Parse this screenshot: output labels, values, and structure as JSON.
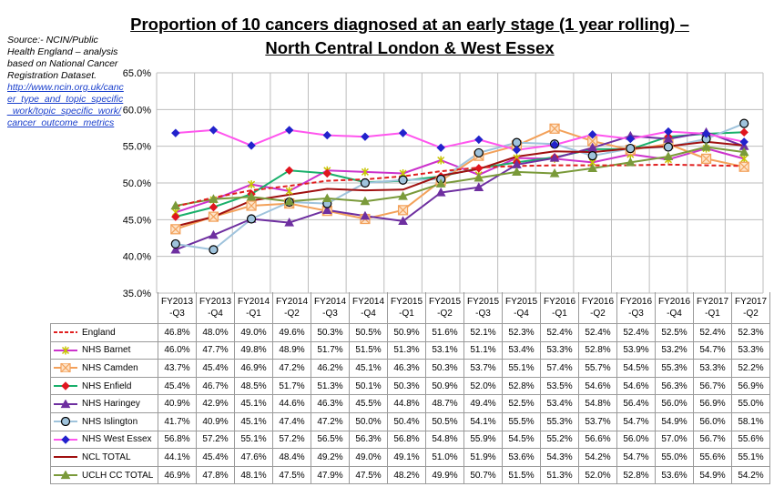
{
  "title_line1": "Proportion of 10 cancers diagnosed at an early stage (1 year rolling) –",
  "title_line2": "North Central London & West Essex",
  "source": {
    "text": "Source:- NCIN/Public Health England – analysis based on National Cancer Registration Dataset.",
    "link": "http://www.ncin.org.uk/cancer_type_and_topic_specific_work/topic_specific_work/cancer_outcome_metrics"
  },
  "chart_data": {
    "type": "line",
    "title": "Proportion of 10 cancers diagnosed at an early stage (1 year rolling) – North Central London & West Essex",
    "categories": [
      "FY2013 -Q3",
      "FY2013 -Q4",
      "FY2014 -Q1",
      "FY2014 -Q2",
      "FY2014 -Q3",
      "FY2014 -Q4",
      "FY2015 -Q1",
      "FY2015 -Q2",
      "FY2015 -Q3",
      "FY2015 -Q4",
      "FY2016 -Q1",
      "FY2016 -Q2",
      "FY2016 -Q3",
      "FY2016 -Q4",
      "FY2017 -Q1",
      "FY2017 -Q2"
    ],
    "ylim": [
      35.0,
      65.0
    ],
    "yticks": [
      "35.0%",
      "40.0%",
      "45.0%",
      "50.0%",
      "55.0%",
      "60.0%",
      "65.0%"
    ],
    "grid": true,
    "legend": "data table below chart",
    "series": [
      {
        "name": "England",
        "color": "#e01f1f",
        "marker": "none",
        "dash": true,
        "values": [
          46.8,
          48.0,
          49.0,
          49.6,
          50.3,
          50.5,
          50.9,
          51.6,
          52.1,
          52.3,
          52.4,
          52.4,
          52.4,
          52.5,
          52.4,
          52.3
        ],
        "labels": [
          "46.8%",
          "48.0%",
          "49.0%",
          "49.6%",
          "50.3%",
          "50.5%",
          "50.9%",
          "51.6%",
          "52.1%",
          "52.3%",
          "52.4%",
          "52.4%",
          "52.4%",
          "52.5%",
          "52.4%",
          "52.3%"
        ]
      },
      {
        "name": "NHS Barnet",
        "color": "#cc33cc",
        "marker": "star",
        "values": [
          46.0,
          47.7,
          49.8,
          48.9,
          51.7,
          51.5,
          51.3,
          53.1,
          51.1,
          53.4,
          53.3,
          52.8,
          53.9,
          53.2,
          54.7,
          53.3
        ],
        "labels": [
          "46.0%",
          "47.7%",
          "49.8%",
          "48.9%",
          "51.7%",
          "51.5%",
          "51.3%",
          "53.1%",
          "51.1%",
          "53.4%",
          "53.3%",
          "52.8%",
          "53.9%",
          "53.2%",
          "54.7%",
          "53.3%"
        ]
      },
      {
        "name": "NHS Camden",
        "color": "#f3a15a",
        "marker": "xbox",
        "values": [
          43.7,
          45.4,
          46.9,
          47.2,
          46.2,
          45.1,
          46.3,
          50.3,
          53.7,
          55.1,
          57.4,
          55.7,
          54.5,
          55.3,
          53.3,
          52.2
        ],
        "labels": [
          "43.7%",
          "45.4%",
          "46.9%",
          "47.2%",
          "46.2%",
          "45.1%",
          "46.3%",
          "50.3%",
          "53.7%",
          "55.1%",
          "57.4%",
          "55.7%",
          "54.5%",
          "55.3%",
          "53.3%",
          "52.2%"
        ]
      },
      {
        "name": "NHS Enfield",
        "color": "#19b06b",
        "marker": "diamond",
        "markerColor": "#e0151f",
        "values": [
          45.4,
          46.7,
          48.5,
          51.7,
          51.3,
          50.1,
          50.3,
          50.9,
          52.0,
          52.8,
          53.5,
          54.6,
          54.6,
          56.3,
          56.7,
          56.9
        ],
        "labels": [
          "45.4%",
          "46.7%",
          "48.5%",
          "51.7%",
          "51.3%",
          "50.1%",
          "50.3%",
          "50.9%",
          "52.0%",
          "52.8%",
          "53.5%",
          "54.6%",
          "54.6%",
          "56.3%",
          "56.7%",
          "56.9%"
        ]
      },
      {
        "name": "NHS Haringey",
        "color": "#6e2fa0",
        "marker": "triangle",
        "values": [
          40.9,
          42.9,
          45.1,
          44.6,
          46.3,
          45.5,
          44.8,
          48.7,
          49.4,
          52.5,
          53.4,
          54.8,
          56.4,
          56.0,
          56.9,
          55.0
        ],
        "labels": [
          "40.9%",
          "42.9%",
          "45.1%",
          "44.6%",
          "46.3%",
          "45.5%",
          "44.8%",
          "48.7%",
          "49.4%",
          "52.5%",
          "53.4%",
          "54.8%",
          "56.4%",
          "56.0%",
          "56.9%",
          "55.0%"
        ]
      },
      {
        "name": "NHS Islington",
        "color": "#9fc3dc",
        "marker": "circle",
        "values": [
          41.7,
          40.9,
          45.1,
          47.4,
          47.2,
          50.0,
          50.4,
          50.5,
          54.1,
          55.5,
          55.3,
          53.7,
          54.7,
          54.9,
          56.0,
          58.1
        ],
        "labels": [
          "41.7%",
          "40.9%",
          "45.1%",
          "47.4%",
          "47.2%",
          "50.0%",
          "50.4%",
          "50.5%",
          "54.1%",
          "55.5%",
          "55.3%",
          "53.7%",
          "54.7%",
          "54.9%",
          "56.0%",
          "58.1%"
        ]
      },
      {
        "name": "NHS West Essex",
        "color": "#ff55ee",
        "marker": "diamond",
        "markerColor": "#2222cc",
        "values": [
          56.8,
          57.2,
          55.1,
          57.2,
          56.5,
          56.3,
          56.8,
          54.8,
          55.9,
          54.5,
          55.2,
          56.6,
          56.0,
          57.0,
          56.7,
          55.6
        ],
        "labels": [
          "56.8%",
          "57.2%",
          "55.1%",
          "57.2%",
          "56.5%",
          "56.3%",
          "56.8%",
          "54.8%",
          "55.9%",
          "54.5%",
          "55.2%",
          "56.6%",
          "56.0%",
          "57.0%",
          "56.7%",
          "55.6%"
        ]
      },
      {
        "name": "NCL TOTAL",
        "color": "#a01010",
        "marker": "none",
        "values": [
          44.1,
          45.4,
          47.6,
          48.4,
          49.2,
          49.0,
          49.1,
          51.0,
          51.9,
          53.6,
          54.3,
          54.2,
          54.7,
          55.0,
          55.6,
          55.1
        ],
        "labels": [
          "44.1%",
          "45.4%",
          "47.6%",
          "48.4%",
          "49.2%",
          "49.0%",
          "49.1%",
          "51.0%",
          "51.9%",
          "53.6%",
          "54.3%",
          "54.2%",
          "54.7%",
          "55.0%",
          "55.6%",
          "55.1%"
        ]
      },
      {
        "name": "UCLH CC TOTAL",
        "color": "#7a9a3a",
        "marker": "triangle",
        "values": [
          46.9,
          47.8,
          48.1,
          47.5,
          47.9,
          47.5,
          48.2,
          49.9,
          50.7,
          51.5,
          51.3,
          52.0,
          52.8,
          53.6,
          54.9,
          54.2
        ],
        "labels": [
          "46.9%",
          "47.8%",
          "48.1%",
          "47.5%",
          "47.9%",
          "47.5%",
          "48.2%",
          "49.9%",
          "50.7%",
          "51.5%",
          "51.3%",
          "52.0%",
          "52.8%",
          "53.6%",
          "54.9%",
          "54.2%"
        ]
      }
    ]
  }
}
